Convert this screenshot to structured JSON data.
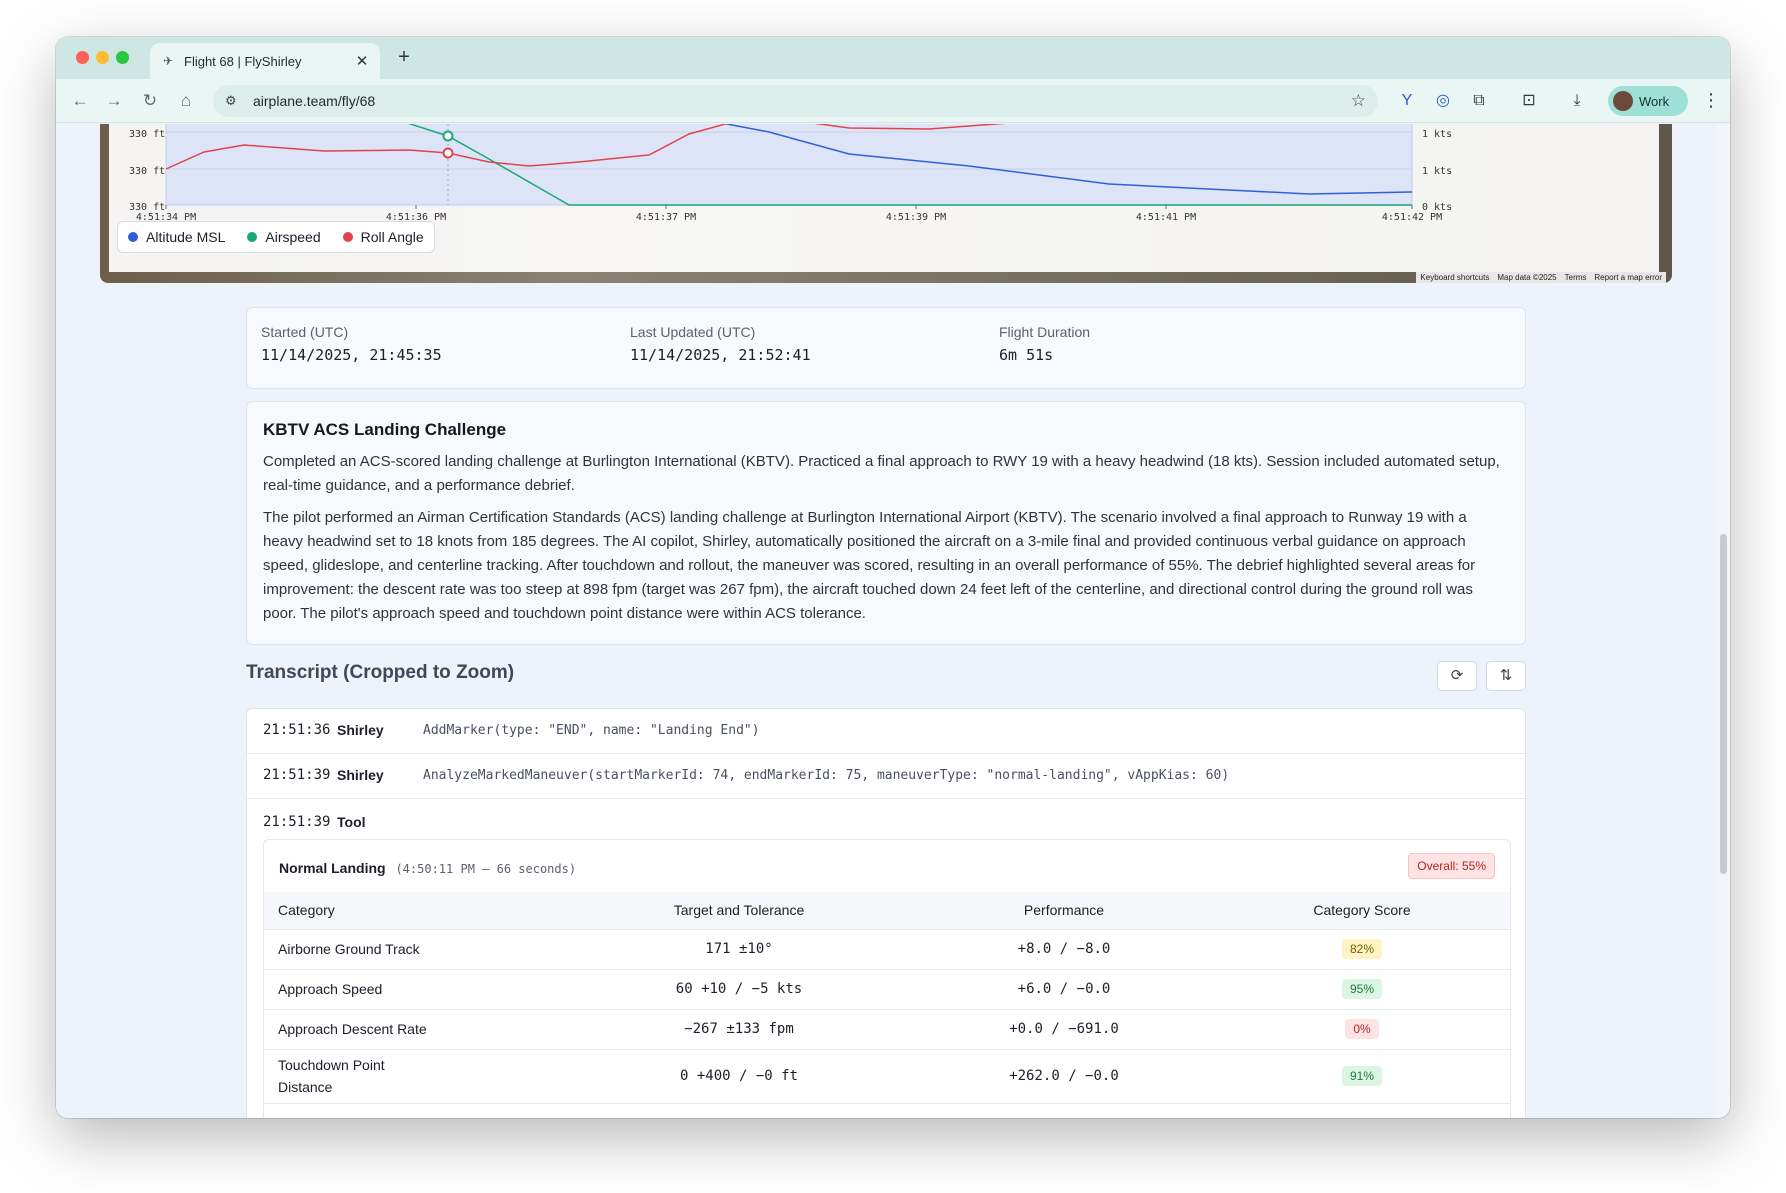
{
  "browser": {
    "tab_title": "Flight 68 | FlyShirley",
    "url": "airplane.team/fly/68",
    "profile_label": "Work"
  },
  "chart_data": {
    "type": "line",
    "x_ticks": [
      "4:51:34 PM",
      "4:51:36 PM",
      "4:51:37 PM",
      "4:51:39 PM",
      "4:51:41 PM",
      "4:51:42 PM"
    ],
    "left_axis_ticks": [
      "330 ft",
      "330 ft",
      "330 ft"
    ],
    "right_axis_ticks": [
      "1 kts",
      "1 kts",
      "0 kts"
    ],
    "series": [
      {
        "name": "Altitude MSL",
        "color": "#2f5fd8"
      },
      {
        "name": "Airspeed",
        "color": "#19a873"
      },
      {
        "name": "Roll Angle",
        "color": "#e0444b"
      }
    ],
    "map_attribution": [
      "Keyboard shortcuts",
      "Map data ©2025",
      "Terms",
      "Report a map error"
    ]
  },
  "stats": {
    "started_label": "Started (UTC)",
    "started_value": "11/14/2025, 21:45:35",
    "updated_label": "Last Updated (UTC)",
    "updated_value": "11/14/2025, 21:52:41",
    "duration_label": "Flight Duration",
    "duration_value": "6m 51s"
  },
  "summary": {
    "title": "KBTV ACS Landing Challenge",
    "short": "Completed an ACS-scored landing challenge at Burlington International (KBTV). Practiced a final approach to RWY 19 with a heavy headwind (18 kts). Session included automated setup, real-time guidance, and a performance debrief.",
    "long": "The pilot performed an Airman Certification Standards (ACS) landing challenge at Burlington International Airport (KBTV). The scenario involved a final approach to Runway 19 with a heavy headwind set to 18 knots from 185 degrees. The AI copilot, Shirley, automatically positioned the aircraft on a 3-mile final and provided continuous verbal guidance on approach speed, glideslope, and centerline tracking. After touchdown and rollout, the maneuver was scored, resulting in an overall performance of 55%. The debrief highlighted several areas for improvement: the descent rate was too steep at 898 fpm (target was 267 fpm), the aircraft touched down 24 feet left of the centerline, and directional control during the ground roll was poor. The pilot's approach speed and touchdown point distance were within ACS tolerance."
  },
  "transcript": {
    "title": "Transcript (Cropped to Zoom)",
    "rows": [
      {
        "time": "21:51:36",
        "who": "Shirley",
        "msg": "AddMarker(type: \"END\", name: \"Landing End\")"
      },
      {
        "time": "21:51:39",
        "who": "Shirley",
        "msg": "AnalyzeMarkedManeuver(startMarkerId: 74, endMarkerId: 75, maneuverType: \"normal-landing\", vAppKias: 60)"
      },
      {
        "time": "21:51:39",
        "who": "Tool",
        "msg": ""
      }
    ],
    "tool": {
      "name": "Normal Landing",
      "meta": "(4:50:11 PM – 66 seconds)",
      "overall": "Overall: 55%",
      "headers": [
        "Category",
        "Target and Tolerance",
        "Performance",
        "Category Score"
      ],
      "rows": [
        {
          "category": "Airborne Ground Track",
          "target": "171 ±10°",
          "performance": "+8.0 / −8.0",
          "score": "82%",
          "level": "yellow"
        },
        {
          "category": "Approach Speed",
          "target": "60 +10 / −5 kts",
          "performance": "+6.0 / −0.0",
          "score": "95%",
          "level": "green"
        },
        {
          "category": "Approach Descent Rate",
          "target": "−267 ±133 fpm",
          "performance": "+0.0 / −691.0",
          "score": "0%",
          "level": "red"
        },
        {
          "category": "Touchdown Point Distance",
          "target": "0 +400 / −0 ft",
          "performance": "+262.0 / −0.0",
          "score": "91%",
          "level": "green"
        }
      ]
    }
  }
}
